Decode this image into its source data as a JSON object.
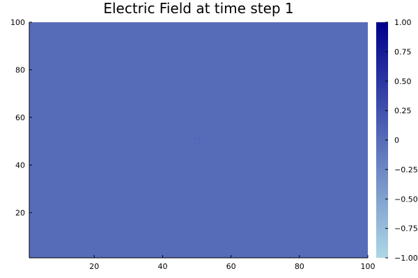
{
  "chart_data": {
    "type": "heatmap",
    "title": "Electric Field at time step 1",
    "xlabel": "",
    "ylabel": "",
    "xlim": [
      1,
      100
    ],
    "ylim": [
      1,
      100
    ],
    "x_ticks": [
      20,
      40,
      60,
      80,
      100
    ],
    "y_ticks": [
      20,
      40,
      60,
      80,
      100
    ],
    "x_tick_labels": [
      "20",
      "40",
      "60",
      "80",
      "100"
    ],
    "y_tick_labels": [
      "20",
      "40",
      "60",
      "80",
      "100"
    ],
    "grid": false,
    "legend": "none",
    "field_value": 0,
    "source_point": {
      "x": 50,
      "y": 50
    },
    "colorbar": {
      "min": -1,
      "max": 1,
      "ticks": [
        1.0,
        0.75,
        0.5,
        0.25,
        0,
        -0.25,
        -0.5,
        -0.75,
        -1.0
      ],
      "tick_labels": [
        "1.00",
        "0.75",
        "0.50",
        "0.25",
        "0",
        "−0.25",
        "−0.50",
        "−0.75",
        "−1.00"
      ],
      "color_low": "#add8e6",
      "color_high": "#00008b"
    }
  }
}
